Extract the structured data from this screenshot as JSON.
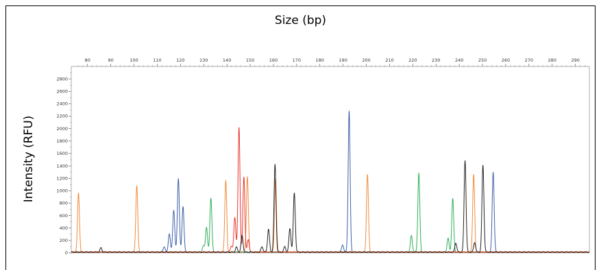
{
  "chart_data": {
    "type": "line",
    "xlabel": "Size (bp)",
    "ylabel": "Intensity (RFU)",
    "xlim": [
      73,
      296
    ],
    "ylim": [
      0,
      3000
    ],
    "x_ticks": [
      80,
      90,
      100,
      110,
      120,
      130,
      140,
      150,
      160,
      170,
      180,
      190,
      200,
      210,
      220,
      230,
      240,
      250,
      260,
      270,
      280,
      290
    ],
    "y_ticks": [
      0,
      200,
      400,
      600,
      800,
      1000,
      1200,
      1400,
      1600,
      1800,
      2000,
      2200,
      2400,
      2600,
      2800
    ],
    "grid": false,
    "legend": "none",
    "series": [
      {
        "color": "#3a5fa8",
        "peaks": [
          [
            113,
            90
          ],
          [
            115.2,
            300
          ],
          [
            117.1,
            680
          ],
          [
            119.1,
            1190
          ],
          [
            121.1,
            740
          ],
          [
            189.8,
            120
          ],
          [
            192.6,
            2270
          ],
          [
            254.6,
            1290
          ]
        ]
      },
      {
        "color": "#2fae5a",
        "peaks": [
          [
            129.9,
            100
          ],
          [
            131.2,
            400
          ],
          [
            133.1,
            870
          ],
          [
            219.4,
            270
          ],
          [
            222.6,
            1270
          ],
          [
            235.2,
            220
          ],
          [
            237.2,
            860
          ]
        ]
      },
      {
        "color": "#f08a3a",
        "peaks": [
          [
            76.1,
            950
          ],
          [
            101.2,
            1070
          ],
          [
            139.5,
            1150
          ],
          [
            148.8,
            1220
          ],
          [
            160.9,
            1190
          ],
          [
            200.5,
            1250
          ],
          [
            246.2,
            1250
          ]
        ]
      },
      {
        "color": "#e8342c",
        "peaks": [
          [
            141.9,
            100
          ],
          [
            143.4,
            560
          ],
          [
            145.2,
            2010
          ],
          [
            147.3,
            1210
          ],
          [
            149.2,
            200
          ]
        ]
      },
      {
        "color": "#222222",
        "peaks": [
          [
            85.8,
            70
          ],
          [
            144.1,
            80
          ],
          [
            146.5,
            270
          ],
          [
            155.1,
            90
          ],
          [
            157.9,
            370
          ],
          [
            160.7,
            1410
          ],
          [
            164.9,
            90
          ],
          [
            167.1,
            380
          ],
          [
            169.0,
            950
          ],
          [
            238.5,
            150
          ],
          [
            242.5,
            1480
          ],
          [
            246.6,
            160
          ],
          [
            250.2,
            1400
          ]
        ]
      }
    ]
  }
}
